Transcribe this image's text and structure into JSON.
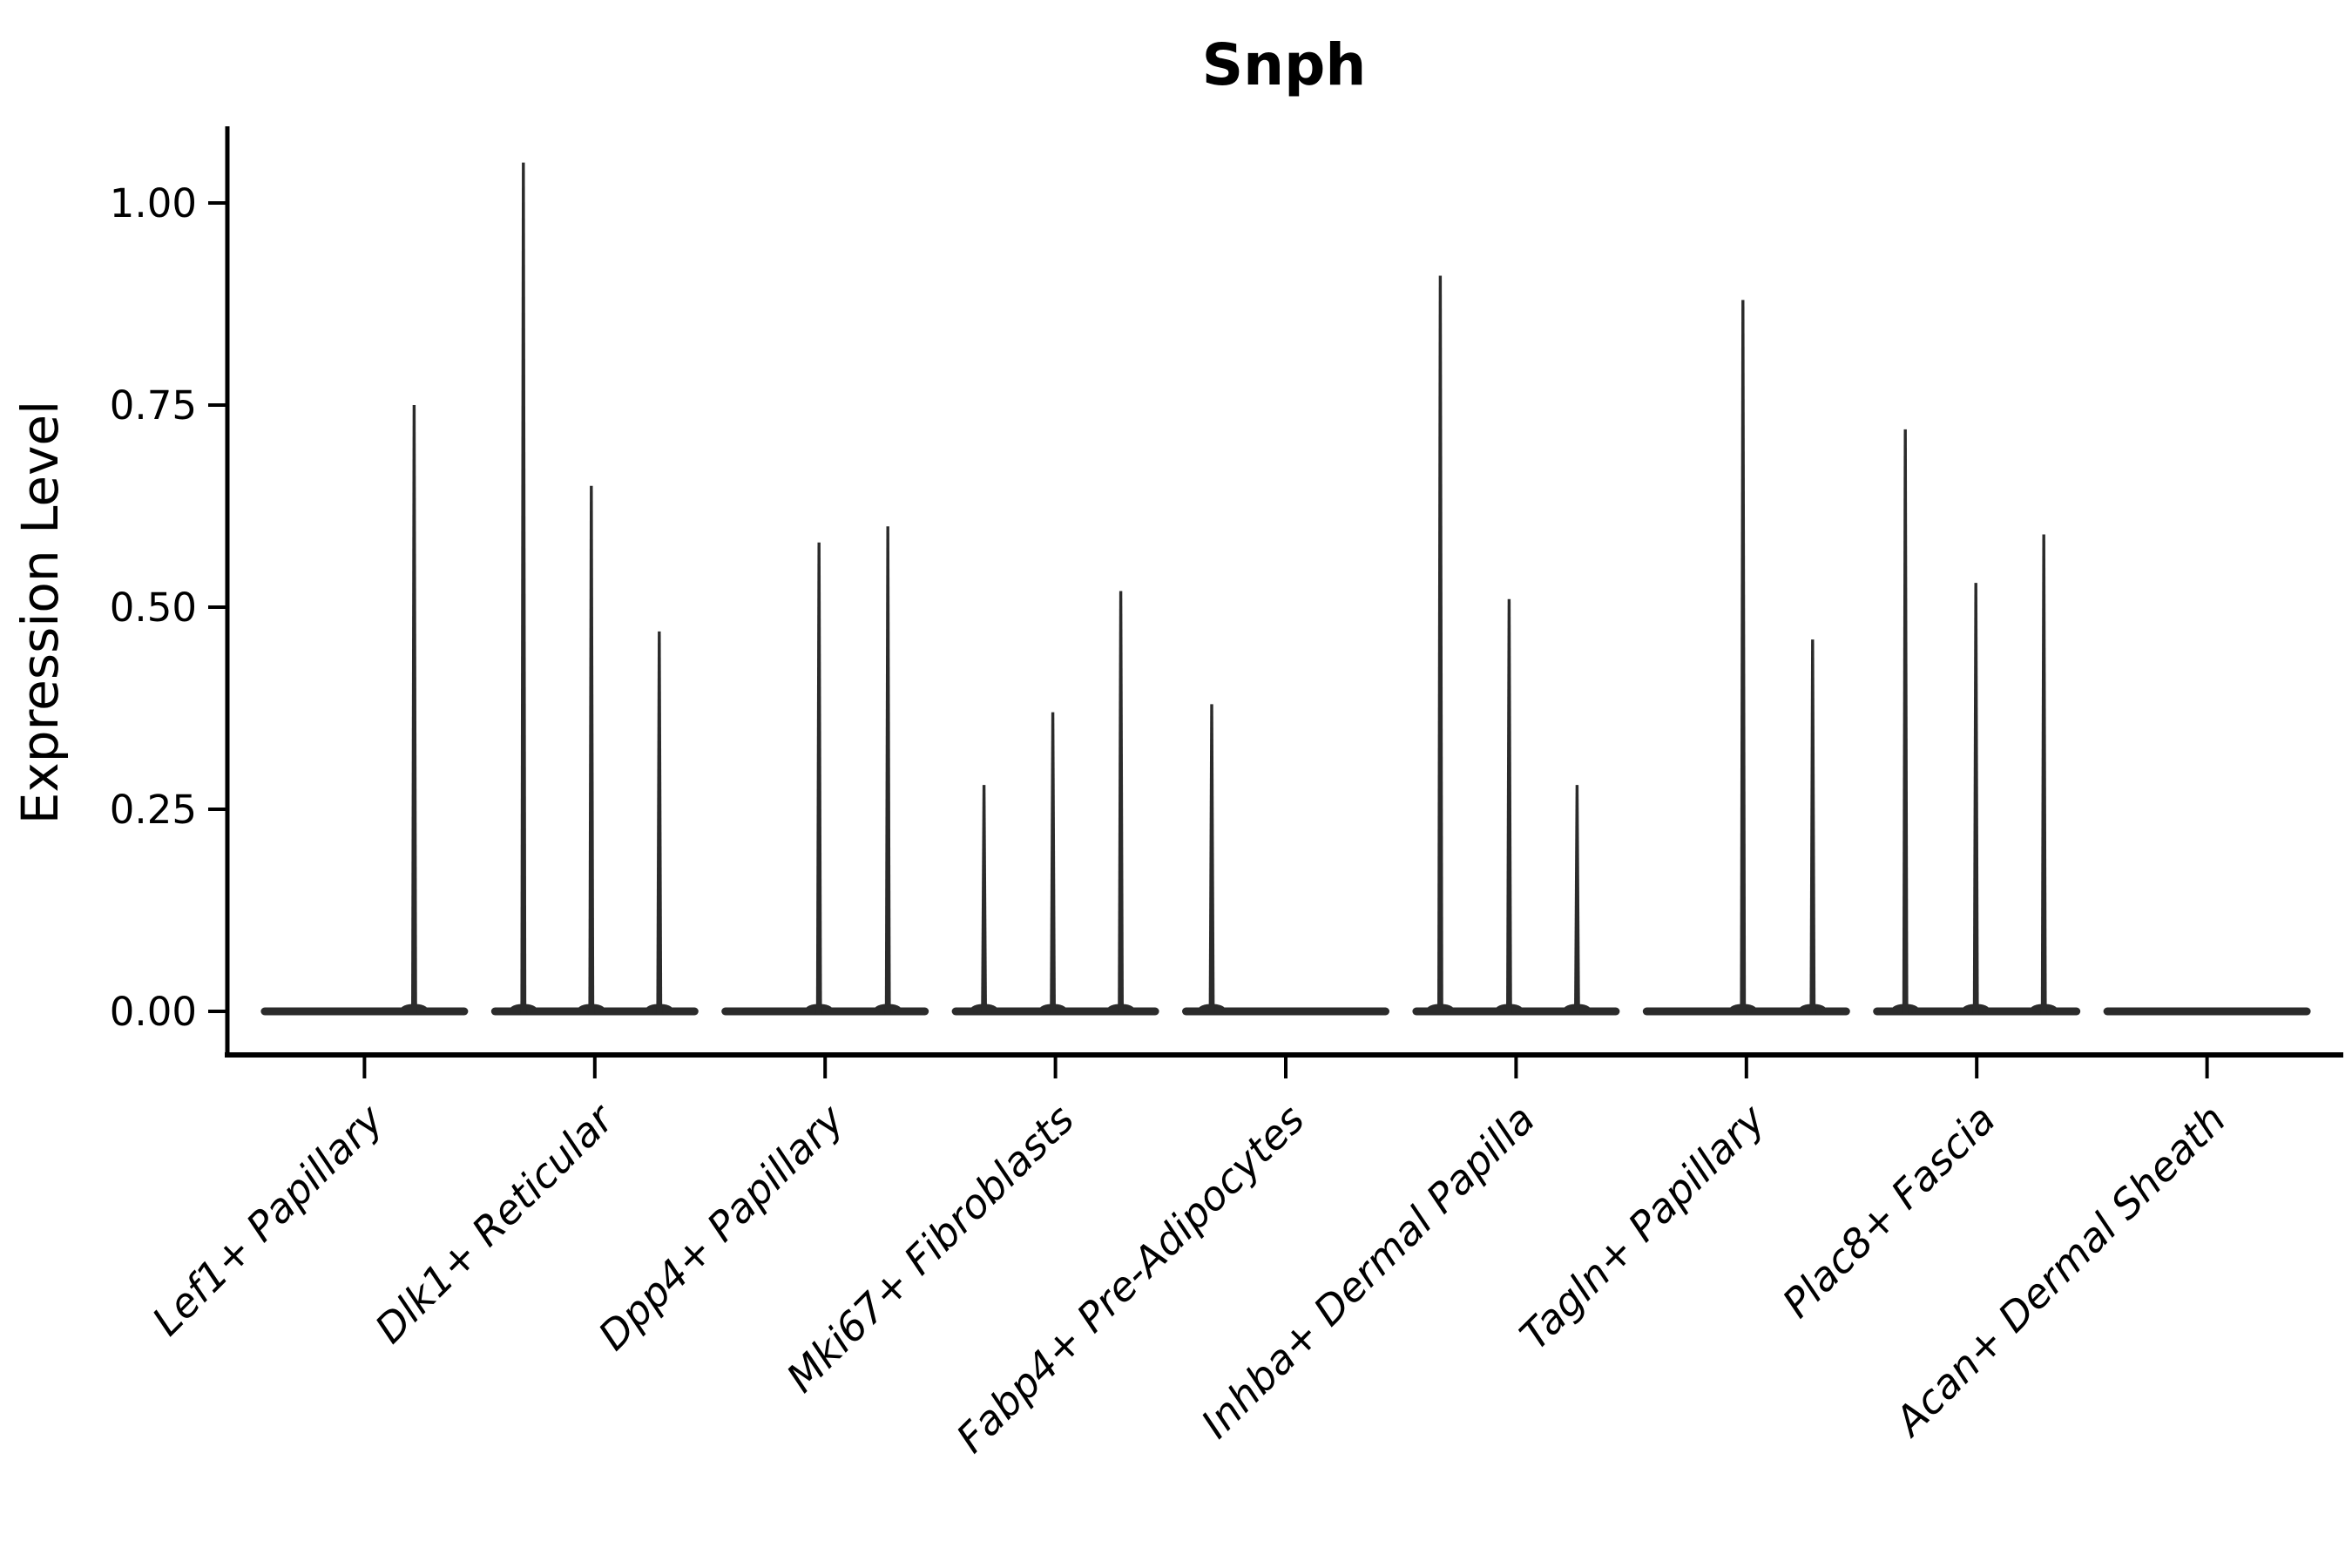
{
  "figure": {
    "title": "Snph"
  },
  "chart_data": {
    "type": "violin",
    "title": "Snph",
    "xlabel": "",
    "ylabel": "Expression Level",
    "ylim": [
      0,
      1.1
    ],
    "ytick_labels": [
      "0.00",
      "0.25",
      "0.50",
      "0.75",
      "1.00"
    ],
    "ytick_values": [
      0.0,
      0.25,
      0.5,
      0.75,
      1.0
    ],
    "grid": false,
    "legend": null,
    "categories": [
      "Lef1+ Papillary",
      "Dlk1+ Reticular",
      "Dpp4+ Papillary",
      "Mki67+ Fibroblasts",
      "Fabp4+ Pre-Adipocytes",
      "Inhba+ Dermal Papilla",
      "Tagln+ Papillary",
      "Plac8+ Fascia",
      "Acan+ Dermal Sheath"
    ],
    "series": [
      {
        "category": "Lef1+ Papillary",
        "spikes": [
          {
            "dx": 57,
            "value": 0.75
          }
        ]
      },
      {
        "category": "Dlk1+ Reticular",
        "spikes": [
          {
            "dx": -82,
            "value": 1.05
          },
          {
            "dx": -4,
            "value": 0.65
          },
          {
            "dx": 74,
            "value": 0.47
          }
        ]
      },
      {
        "category": "Dpp4+ Papillary",
        "spikes": [
          {
            "dx": -7,
            "value": 0.58
          },
          {
            "dx": 72,
            "value": 0.6
          }
        ]
      },
      {
        "category": "Mki67+ Fibroblasts",
        "spikes": [
          {
            "dx": -82,
            "value": 0.28
          },
          {
            "dx": -3,
            "value": 0.37
          },
          {
            "dx": 75,
            "value": 0.52
          }
        ]
      },
      {
        "category": "Fabp4+ Pre-Adipocytes",
        "spikes": [
          {
            "dx": -85,
            "value": 0.38
          }
        ]
      },
      {
        "category": "Inhba+ Dermal Papilla",
        "spikes": [
          {
            "dx": -87,
            "value": 0.91
          },
          {
            "dx": -8,
            "value": 0.51
          },
          {
            "dx": 70,
            "value": 0.28
          }
        ]
      },
      {
        "category": "Tagln+ Papillary",
        "spikes": [
          {
            "dx": -4,
            "value": 0.88
          },
          {
            "dx": 76,
            "value": 0.46
          }
        ]
      },
      {
        "category": "Plac8+ Fascia",
        "spikes": [
          {
            "dx": -82,
            "value": 0.72
          },
          {
            "dx": -1,
            "value": 0.53
          },
          {
            "dx": 77,
            "value": 0.59
          }
        ]
      },
      {
        "category": "Acan+ Dermal Sheath",
        "spikes": []
      }
    ],
    "colors": {
      "violin_line": "#2b2b2b",
      "axis": "#000000",
      "text": "#000000",
      "background": "#ffffff"
    }
  }
}
